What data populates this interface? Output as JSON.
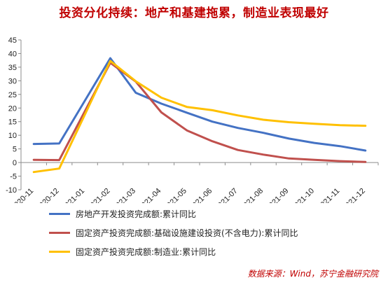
{
  "title": "投资分化持续：地产和基建拖累，制造业表现最好",
  "source": "数据来源：Wind，苏宁金融研究院",
  "chart_data": {
    "type": "line",
    "title": "投资分化持续：地产和基建拖累，制造业表现最好",
    "xlabel": "",
    "ylabel": "",
    "categories": [
      "2020-11",
      "2020-12",
      "2021-01",
      "2021-02",
      "2021-03",
      "2021-04",
      "2021-05",
      "2021-06",
      "2021-07",
      "2021-08",
      "2021-09",
      "2021-10",
      "2021-11",
      "2021-12"
    ],
    "ylim": [
      -10,
      45
    ],
    "yticks": [
      -10,
      -5,
      0,
      5,
      10,
      15,
      20,
      25,
      30,
      35,
      40,
      45
    ],
    "grid": false,
    "legend_position": "bottom",
    "series": [
      {
        "name": "房地产开发投资完成额:累计同比",
        "color": "#4472c4",
        "values": [
          6.8,
          7.0,
          null,
          38.3,
          25.6,
          21.6,
          18.3,
          15.0,
          12.7,
          10.9,
          8.8,
          7.2,
          6.0,
          4.4
        ]
      },
      {
        "name": "固定资产投资完成额:基础设施建设投资(不含电力):累计同比",
        "color": "#c0504d",
        "values": [
          1.0,
          0.9,
          null,
          36.6,
          29.7,
          18.4,
          11.8,
          7.8,
          4.6,
          2.9,
          1.5,
          1.0,
          0.5,
          0.2
        ]
      },
      {
        "name": "固定资产投资完成额:制造业:累计同比",
        "color": "#ffc000",
        "values": [
          -3.5,
          -2.2,
          null,
          37.3,
          29.8,
          23.8,
          20.4,
          19.2,
          17.3,
          15.7,
          14.8,
          14.2,
          13.7,
          13.5
        ]
      }
    ]
  }
}
